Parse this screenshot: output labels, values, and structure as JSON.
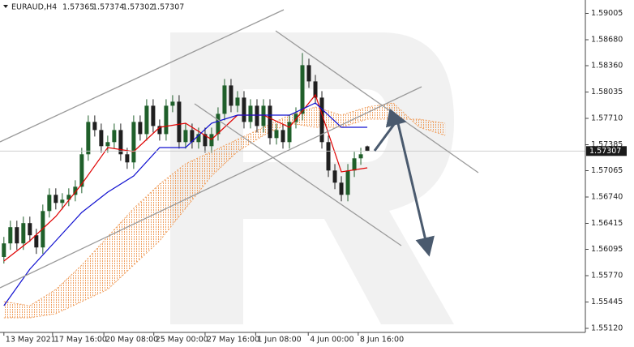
{
  "chart_data": {
    "type": "candlestick",
    "title": "EURAUD,H4",
    "up_color": "#1f5f2a",
    "down_color": "#1f1f1f",
    "x": [
      0,
      1,
      2,
      3,
      4,
      5,
      6,
      7,
      8,
      9,
      10,
      11,
      12,
      13,
      14,
      15,
      16,
      17,
      18,
      19,
      20,
      21,
      22,
      23,
      24,
      25,
      26,
      27,
      28,
      29,
      30,
      31,
      32,
      33,
      34,
      35,
      36,
      37,
      38,
      39,
      40,
      41,
      42,
      43,
      44,
      45,
      46,
      47,
      48,
      49,
      50,
      51,
      52,
      53,
      54,
      55,
      56
    ],
    "open": [
      1.56,
      1.56168,
      1.56368,
      1.56168,
      1.56418,
      1.56268,
      1.56118,
      1.56567,
      1.56767,
      1.56667,
      1.56707,
      1.56767,
      1.56867,
      1.57267,
      1.57666,
      1.57566,
      1.57367,
      1.57417,
      1.57566,
      1.57267,
      1.57167,
      1.57666,
      1.57516,
      1.57866,
      1.57616,
      1.57516,
      1.57866,
      1.57916,
      1.57417,
      1.57566,
      1.57417,
      1.57516,
      1.57367,
      1.57516,
      1.57766,
      1.58116,
      1.57866,
      1.57966,
      1.57666,
      1.57866,
      1.57616,
      1.57866,
      1.57467,
      1.57566,
      1.57417,
      1.57666,
      1.57766,
      1.58366,
      1.58166,
      1.57966,
      1.57417,
      1.57067,
      1.56917,
      1.56767,
      1.57067,
      1.57217,
      1.57365
    ],
    "high": [
      1.56248,
      1.56448,
      1.56448,
      1.56498,
      1.56498,
      1.56348,
      1.56647,
      1.56847,
      1.56847,
      1.56787,
      1.56847,
      1.56947,
      1.57347,
      1.57746,
      1.57746,
      1.57646,
      1.57497,
      1.57646,
      1.57646,
      1.57347,
      1.57746,
      1.57746,
      1.57946,
      1.57946,
      1.57696,
      1.57946,
      1.57996,
      1.57996,
      1.57646,
      1.57646,
      1.57596,
      1.57596,
      1.57596,
      1.57846,
      1.58196,
      1.58196,
      1.58046,
      1.58046,
      1.57946,
      1.57946,
      1.57946,
      1.57946,
      1.57646,
      1.57646,
      1.57746,
      1.57846,
      1.58516,
      1.58446,
      1.58246,
      1.58046,
      1.57497,
      1.57147,
      1.56997,
      1.57147,
      1.57297,
      1.57347,
      1.57374
    ],
    "low": [
      1.5592,
      1.56088,
      1.56088,
      1.56088,
      1.56188,
      1.56038,
      1.56038,
      1.56487,
      1.56587,
      1.56587,
      1.56627,
      1.56687,
      1.56787,
      1.57187,
      1.57486,
      1.57287,
      1.57287,
      1.57337,
      1.57187,
      1.57087,
      1.57087,
      1.57436,
      1.57436,
      1.57536,
      1.57436,
      1.57436,
      1.57786,
      1.57337,
      1.57337,
      1.57337,
      1.57337,
      1.57287,
      1.57287,
      1.57436,
      1.57686,
      1.57786,
      1.57786,
      1.57586,
      1.57586,
      1.57536,
      1.57536,
      1.57387,
      1.57387,
      1.57337,
      1.57337,
      1.57586,
      1.57686,
      1.58086,
      1.57886,
      1.57337,
      1.56987,
      1.56837,
      1.56687,
      1.56687,
      1.56987,
      1.57137,
      1.57302
    ],
    "close": [
      1.56168,
      1.56368,
      1.56168,
      1.56418,
      1.56268,
      1.56118,
      1.56567,
      1.56767,
      1.56667,
      1.56707,
      1.56767,
      1.56867,
      1.57267,
      1.57666,
      1.57566,
      1.57367,
      1.57417,
      1.57566,
      1.57267,
      1.57167,
      1.57666,
      1.57516,
      1.57866,
      1.57616,
      1.57516,
      1.57866,
      1.57916,
      1.57417,
      1.57566,
      1.57417,
      1.57516,
      1.57367,
      1.57516,
      1.57766,
      1.58116,
      1.57866,
      1.57966,
      1.57666,
      1.57866,
      1.57616,
      1.57866,
      1.57467,
      1.57566,
      1.57417,
      1.57666,
      1.57766,
      1.58366,
      1.58166,
      1.57966,
      1.57417,
      1.57067,
      1.56917,
      1.56767,
      1.57067,
      1.57217,
      1.57267,
      1.57307
    ],
    "lines": [
      {
        "color": "#e00000",
        "x": [
          0,
          4,
          8,
          12,
          16,
          20,
          24,
          28,
          32,
          36,
          40,
          44,
          48,
          52,
          56
        ],
        "values": [
          1.5595,
          1.562,
          1.565,
          1.569,
          1.5735,
          1.573,
          1.576,
          1.5765,
          1.5745,
          1.5775,
          1.5775,
          1.576,
          1.58,
          1.5705,
          1.571
        ]
      },
      {
        "color": "#1010d0",
        "x": [
          0,
          4,
          8,
          12,
          16,
          20,
          24,
          28,
          32,
          36,
          40,
          44,
          48,
          52,
          56
        ],
        "values": [
          1.554,
          1.5585,
          1.562,
          1.5655,
          1.568,
          1.57,
          1.5735,
          1.5735,
          1.5765,
          1.5775,
          1.5775,
          1.5775,
          1.579,
          1.576,
          1.576
        ]
      }
    ],
    "cloud": {
      "color": "#f0a060",
      "x": [
        0,
        4,
        8,
        12,
        16,
        20,
        24,
        28,
        32,
        36,
        40,
        44,
        48,
        52,
        56,
        60,
        64,
        68
      ],
      "span_a": [
        1.5545,
        1.554,
        1.556,
        1.559,
        1.5625,
        1.566,
        1.569,
        1.5715,
        1.573,
        1.5745,
        1.576,
        1.5775,
        1.5785,
        1.5775,
        1.5785,
        1.579,
        1.576,
        1.575
      ],
      "span_b": [
        1.5525,
        1.5525,
        1.553,
        1.5545,
        1.556,
        1.559,
        1.562,
        1.566,
        1.57,
        1.573,
        1.575,
        1.5765,
        1.576,
        1.576,
        1.577,
        1.577,
        1.577,
        1.5765
      ]
    },
    "xlim": [
      -0.6,
      89.6
    ],
    "ylim": [
      1.5507,
      1.5917
    ],
    "xticks": [
      {
        "value": 0,
        "label": "13 May 2021"
      },
      {
        "value": 7.5,
        "label": "17 May 16:00"
      },
      {
        "value": 15.4,
        "label": "20 May 08:00"
      },
      {
        "value": 23.1,
        "label": "25 May 00:00"
      },
      {
        "value": 31,
        "label": "27 May 16:00"
      },
      {
        "value": 38.8,
        "label": "1 Jun 08:00"
      },
      {
        "value": 46.9,
        "label": "4 Jun 00:00"
      },
      {
        "value": 54.6,
        "label": "8 Jun 16:00"
      }
    ],
    "yticks": [
      1.59005,
      {
        "value": 1.5868,
        "label": "1.58680"
      },
      {
        "value": 1.5836,
        "label": "1.58360"
      },
      1.58035,
      {
        "value": 1.5771,
        "label": "1.57710"
      },
      1.57385,
      1.57065,
      {
        "value": 1.5674,
        "label": "1.56740"
      },
      1.56415,
      1.56095,
      {
        "value": 1.5577,
        "label": "1.55770"
      },
      1.55445,
      {
        "value": 1.5512,
        "label": "1.55120"
      }
    ],
    "grid": false
  }
}
